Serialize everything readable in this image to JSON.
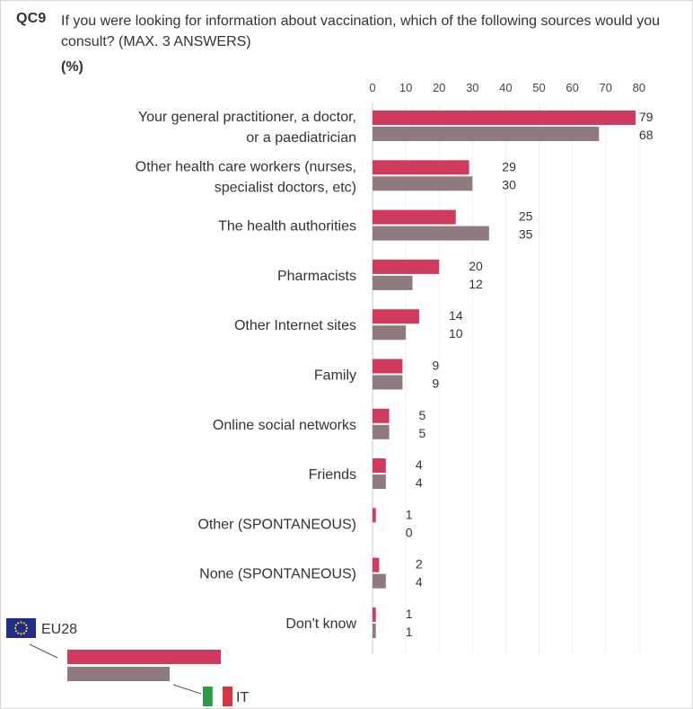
{
  "question": {
    "code": "QC9",
    "text": "If you were looking for information about vaccination, which of the following sources would you consult? (MAX. 3 ANSWERS)",
    "unit": "(%)"
  },
  "colors": {
    "eu28": "#cf3a5d",
    "it": "#8f7a7f",
    "eu_flag": "#1f2d86",
    "eu_stars": "#f7d117",
    "it_green": "#2d9a46",
    "it_white": "#ffffff",
    "it_red": "#d5363e"
  },
  "legend": {
    "eu_label": "EU28",
    "it_label": "IT"
  },
  "chart_data": {
    "type": "bar",
    "orientation": "horizontal",
    "xlim": [
      0,
      80
    ],
    "xticks": [
      0,
      10,
      20,
      30,
      40,
      50,
      60,
      70,
      80
    ],
    "grid": true,
    "legend_position": "bottom-left",
    "categories": [
      [
        "Your general practitioner, a doctor,",
        "or a paediatrician"
      ],
      [
        "Other health care workers (nurses,",
        "specialist doctors, etc)"
      ],
      [
        "The health authorities"
      ],
      [
        "Pharmacists"
      ],
      [
        "Other Internet sites"
      ],
      [
        "Family"
      ],
      [
        "Online social networks"
      ],
      [
        "Friends"
      ],
      [
        "Other (SPONTANEOUS)"
      ],
      [
        "None (SPONTANEOUS)"
      ],
      [
        "Don't know"
      ]
    ],
    "series": [
      {
        "name": "EU28",
        "values": [
          79,
          29,
          25,
          20,
          14,
          9,
          5,
          4,
          1,
          2,
          1
        ]
      },
      {
        "name": "IT",
        "values": [
          68,
          30,
          35,
          12,
          10,
          9,
          5,
          4,
          0,
          4,
          1
        ]
      }
    ]
  }
}
